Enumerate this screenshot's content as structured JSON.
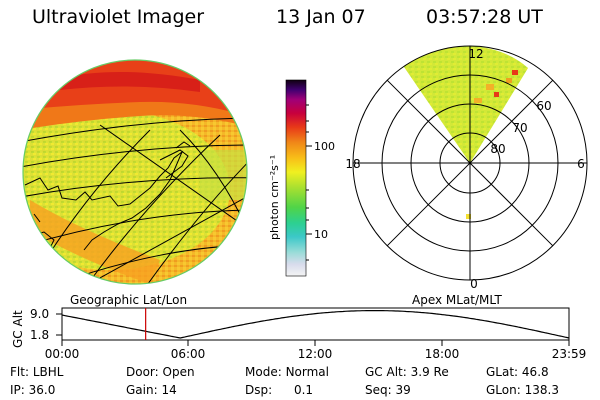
{
  "header": {
    "title": "Ultraviolet Imager",
    "date": "13 Jan 07",
    "time": "03:57:28 UT"
  },
  "colorbar": {
    "unit_label": "photon cm⁻²s⁻¹",
    "ticks": [
      "100",
      "10"
    ]
  },
  "polar": {
    "mlt_labels": [
      "12",
      "18",
      "6",
      "0"
    ],
    "mlat_labels": [
      "60",
      "70",
      "80"
    ]
  },
  "panel_labels": {
    "left": "Geographic Lat/Lon",
    "right": "Apex MLat/MLT"
  },
  "altitude_plot": {
    "ylabel": "GC Alt",
    "y_ticks": [
      "9.0",
      "1.8"
    ],
    "x_ticks": [
      "00:00",
      "06:00",
      "12:00",
      "18:00",
      "23:59"
    ],
    "current_time_hours": 3.96
  },
  "footer": {
    "row1": [
      {
        "label": "Flt:",
        "value": "LBHL"
      },
      {
        "label": "Door:",
        "value": "Open"
      },
      {
        "label": "Mode:",
        "value": "Normal"
      },
      {
        "label": "GC Alt:",
        "value": "3.9 Re"
      },
      {
        "label": "GLat:",
        "value": "46.8"
      }
    ],
    "row2": [
      {
        "label": "IP:",
        "value": "36.0"
      },
      {
        "label": "Gain:",
        "value": "14"
      },
      {
        "label": "Dsp:",
        "value": "0.1"
      },
      {
        "label": "Seq:",
        "value": "39"
      },
      {
        "label": "GLon:",
        "value": "138.3"
      }
    ]
  },
  "colors": {
    "track": "#000000",
    "cursor": "#cc0000",
    "rim": "#66cc66"
  }
}
